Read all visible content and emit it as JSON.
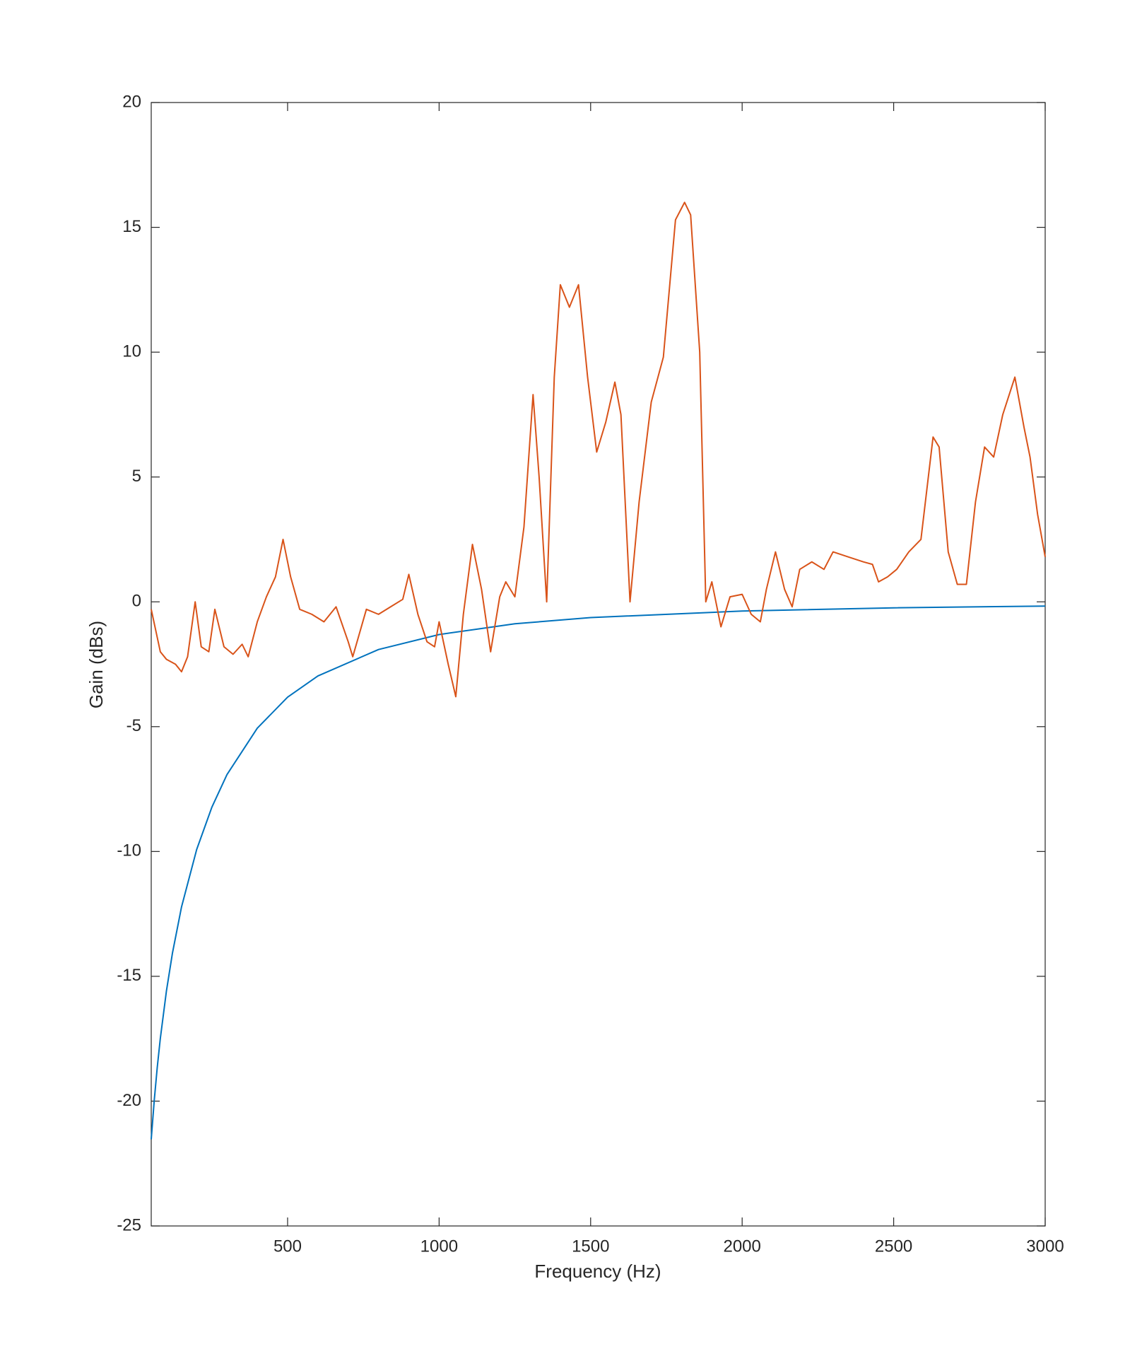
{
  "chart_data": {
    "type": "line",
    "xlabel": "Frequency (Hz)",
    "ylabel": "Gain (dBs)",
    "xlim": [
      50,
      3000
    ],
    "xticks": [
      500,
      1000,
      1500,
      2000,
      2500,
      3000
    ],
    "ylim": [
      -25,
      20
    ],
    "yticks": [
      -25,
      -20,
      -15,
      -10,
      -5,
      0,
      5,
      10,
      15,
      20
    ],
    "grid": false,
    "series": [
      {
        "color": "#0072bd",
        "x": [
          50,
          60,
          70,
          80,
          100,
          120,
          150,
          200,
          250,
          300,
          400,
          500,
          600,
          800,
          1000,
          1250,
          1500,
          2000,
          2500,
          3000
        ],
        "values": [
          -21.53,
          -19.96,
          -18.63,
          -17.49,
          -15.6,
          -14.07,
          -12.22,
          -9.92,
          -8.23,
          -6.92,
          -5.06,
          -3.82,
          -2.97,
          -1.91,
          -1.31,
          -0.88,
          -0.63,
          -0.37,
          -0.24,
          -0.17
        ]
      },
      {
        "color": "#d95319",
        "x": [
          50,
          80,
          100,
          130,
          150,
          170,
          195,
          215,
          240,
          260,
          290,
          320,
          350,
          370,
          400,
          430,
          460,
          485,
          510,
          540,
          580,
          620,
          660,
          700,
          715,
          760,
          800,
          840,
          880,
          900,
          930,
          960,
          985,
          1000,
          1030,
          1055,
          1080,
          1110,
          1140,
          1170,
          1200,
          1220,
          1250,
          1280,
          1310,
          1330,
          1355,
          1380,
          1400,
          1430,
          1460,
          1490,
          1520,
          1550,
          1580,
          1600,
          1630,
          1660,
          1700,
          1740,
          1780,
          1810,
          1830,
          1860,
          1880,
          1900,
          1930,
          1960,
          2000,
          2030,
          2060,
          2080,
          2110,
          2140,
          2165,
          2190,
          2230,
          2270,
          2300,
          2350,
          2400,
          2430,
          2450,
          2480,
          2510,
          2550,
          2590,
          2630,
          2650,
          2680,
          2710,
          2740,
          2770,
          2800,
          2830,
          2860,
          2900,
          2930,
          2950,
          2975,
          3000
        ],
        "values": [
          -0.3,
          -2.0,
          -2.3,
          -2.5,
          -2.8,
          -2.2,
          0.0,
          -1.8,
          -2.0,
          -0.3,
          -1.8,
          -2.1,
          -1.7,
          -2.2,
          -0.8,
          0.2,
          1.0,
          2.5,
          1.0,
          -0.3,
          -0.5,
          -0.8,
          -0.2,
          -1.6,
          -2.2,
          -0.3,
          -0.5,
          -0.2,
          0.1,
          1.1,
          -0.5,
          -1.6,
          -1.8,
          -0.8,
          -2.5,
          -3.8,
          -0.5,
          2.3,
          0.5,
          -2.0,
          0.2,
          0.8,
          0.2,
          3,
          8.3,
          5,
          0,
          9,
          12.7,
          11.8,
          12.7,
          9,
          6.0,
          7.2,
          8.8,
          7.5,
          0.0,
          4.0,
          8.0,
          9.8,
          15.3,
          16.0,
          15.5,
          10,
          0,
          0.8,
          -1.0,
          0.2,
          0.3,
          -0.5,
          -0.8,
          0.5,
          2.0,
          0.5,
          -0.2,
          1.3,
          1.6,
          1.3,
          2.0,
          1.8,
          1.6,
          1.5,
          0.8,
          1.0,
          1.3,
          2.0,
          2.5,
          6.6,
          6.2,
          2,
          0.7,
          0.7,
          4,
          6.2,
          5.8,
          7.5,
          9.0,
          7.0,
          5.8,
          3.5,
          1.8
        ]
      }
    ]
  }
}
